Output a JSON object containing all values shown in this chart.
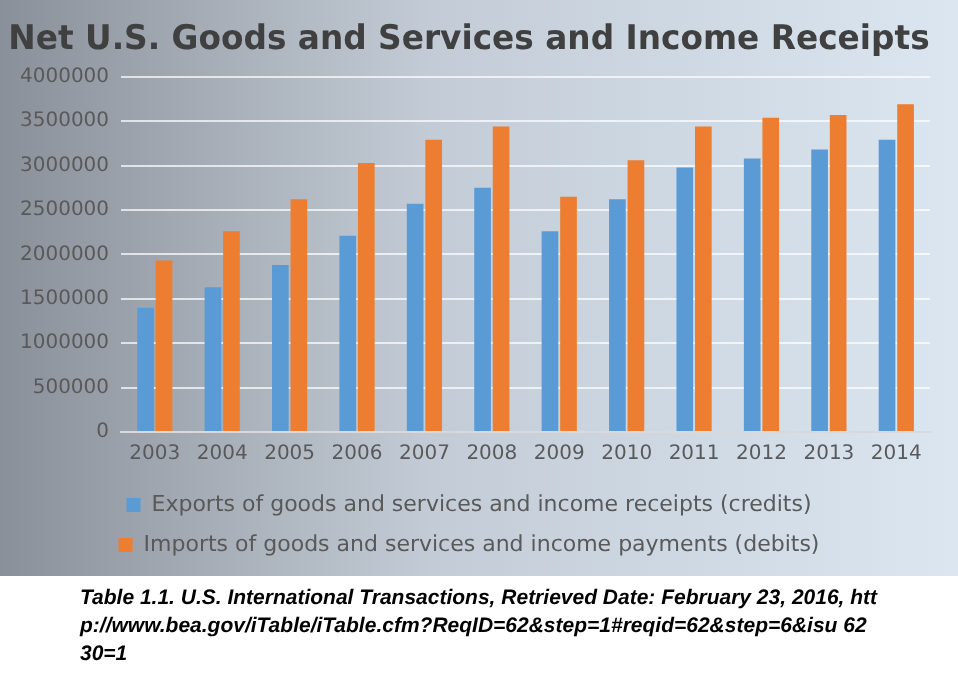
{
  "chart_data": {
    "type": "bar",
    "title": "Net U.S. Goods and Services and Income Receipts",
    "categories": [
      "2003",
      "2004",
      "2005",
      "2006",
      "2007",
      "2008",
      "2009",
      "2010",
      "2011",
      "2012",
      "2013",
      "2014"
    ],
    "series": [
      {
        "name": "Exports of goods and services and income receipts (credits)",
        "color": "#5b9bd5",
        "values": [
          1400000,
          1630000,
          1880000,
          2210000,
          2570000,
          2750000,
          2260000,
          2620000,
          2980000,
          3080000,
          3180000,
          3290000
        ]
      },
      {
        "name": "Imports of goods and services and income payments (debits)",
        "color": "#ed7d31",
        "values": [
          1930000,
          2260000,
          2620000,
          3030000,
          3290000,
          3440000,
          2650000,
          3060000,
          3440000,
          3540000,
          3570000,
          3690000
        ]
      }
    ],
    "ylim": [
      0,
      4000000
    ],
    "yticks": [
      0,
      500000,
      1000000,
      1500000,
      2000000,
      2500000,
      3000000,
      3500000,
      4000000
    ],
    "grid": "y",
    "legend": "bottom",
    "annotations": [
      "Table 1.1. U.S. International Transactions, Retrieved Date: February 23, 2016, http://www.bea.gov/iTable/iTable.cfm?ReqID=62&step=1#reqid=62&step=6&isu 6230=1"
    ]
  }
}
